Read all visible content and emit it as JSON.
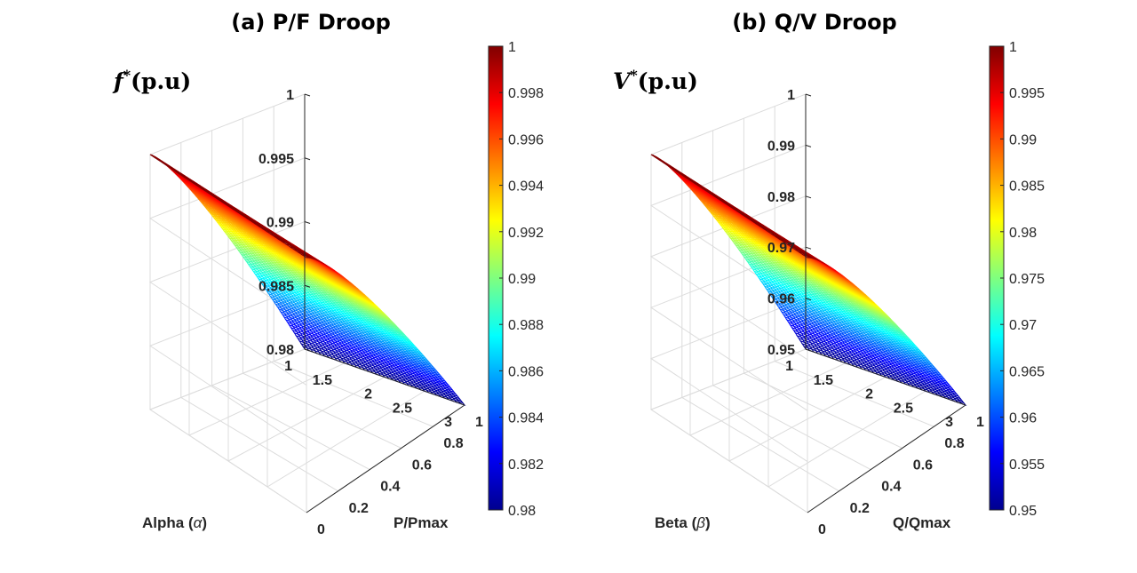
{
  "chart_data": [
    {
      "type": "surface",
      "title": "(a) P/F Droop",
      "zlabel_main": "f",
      "zlabel_sup": "*",
      "zlabel_unit": "(p.u)",
      "xlabel_name": "Alpha (",
      "xlabel_symbol": "α",
      "xlabel_close": ")",
      "ylabel": "P/Pmax",
      "x_range": [
        1,
        3
      ],
      "y_range": [
        0,
        1
      ],
      "z_range": [
        0.98,
        1
      ],
      "x_ticks": [
        "1",
        "1.5",
        "2",
        "2.5",
        "3"
      ],
      "y_ticks": [
        "0",
        "0.2",
        "0.4",
        "0.6",
        "0.8",
        "1"
      ],
      "z_ticks": [
        "0.98",
        "0.985",
        "0.99",
        "0.995",
        "1"
      ],
      "colorbar_ticks": [
        "0.98",
        "0.982",
        "0.984",
        "0.986",
        "0.988",
        "0.99",
        "0.992",
        "0.994",
        "0.996",
        "0.998",
        "1"
      ],
      "colormap": "jet",
      "grid": true,
      "corner_values": {
        "x1_y0": 1.0,
        "x3_y0": 1.0,
        "x1_y1": 0.98,
        "x3_y1": 0.98
      }
    },
    {
      "type": "surface",
      "title": "(b) Q/V Droop",
      "zlabel_main": "V",
      "zlabel_sup": "*",
      "zlabel_unit": "(p.u)",
      "xlabel_name": "Beta (",
      "xlabel_symbol": "β",
      "xlabel_close": ")",
      "ylabel": "Q/Qmax",
      "x_range": [
        1,
        3
      ],
      "y_range": [
        0,
        1
      ],
      "z_range": [
        0.95,
        1
      ],
      "x_ticks": [
        "1",
        "1.5",
        "2",
        "2.5",
        "3"
      ],
      "y_ticks": [
        "0",
        "0.2",
        "0.4",
        "0.6",
        "0.8",
        "1"
      ],
      "z_ticks": [
        "0.95",
        "0.96",
        "0.97",
        "0.98",
        "0.99",
        "1"
      ],
      "colorbar_ticks": [
        "0.95",
        "0.955",
        "0.96",
        "0.965",
        "0.97",
        "0.975",
        "0.98",
        "0.985",
        "0.99",
        "0.995",
        "1"
      ],
      "colormap": "jet",
      "grid": true,
      "corner_values": {
        "x1_y0": 1.0,
        "x3_y0": 1.0,
        "x1_y1": 0.95,
        "x3_y1": 0.95
      }
    }
  ]
}
